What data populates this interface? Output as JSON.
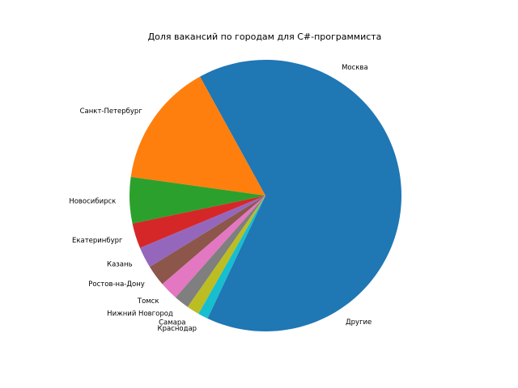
{
  "chart_data": {
    "type": "pie",
    "title": "Доля вакансий по городам для C#-программиста",
    "labels": [
      "Москва",
      "Санкт-Петербург",
      "Новосибирск",
      "Екатеринбург",
      "Казань",
      "Ростов-на-Дону",
      "Томск",
      "Нижний Новгород",
      "Самара",
      "Краснодар",
      "Другие"
    ],
    "values": [
      0.33,
      0.148,
      0.055,
      0.03,
      0.025,
      0.025,
      0.022,
      0.018,
      0.015,
      0.012,
      0.32
    ],
    "colors": [
      "#1f77b4",
      "#ff7f0e",
      "#2ca02c",
      "#d62728",
      "#9467bd",
      "#8c564b",
      "#e377c2",
      "#7f7f7f",
      "#bcbd22",
      "#17becf",
      "#1f77b4"
    ],
    "start_angle_deg": 0,
    "direction": "counterclockwise"
  }
}
